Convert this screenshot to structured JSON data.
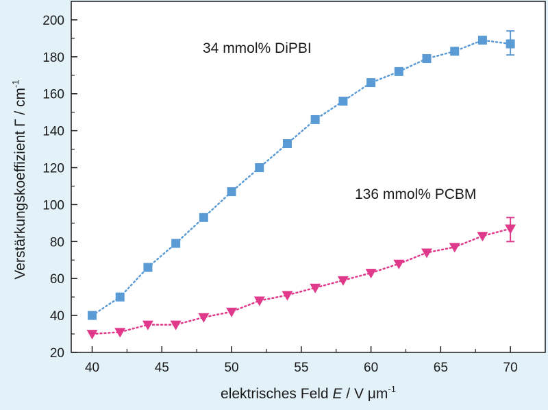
{
  "chart_data": {
    "type": "scatter",
    "title": "",
    "xlabel": {
      "prefix": "elektrisches Feld ",
      "var": "E",
      "unit": " / V μm",
      "sup": "-1"
    },
    "ylabel": {
      "text": "Verstärkungskoeffizient Γ / cm",
      "sup": "-1"
    },
    "xlim": [
      38.5,
      72.5
    ],
    "ylim": [
      20,
      210
    ],
    "xticks": [
      40,
      45,
      50,
      55,
      60,
      65,
      70
    ],
    "yticks": [
      20,
      40,
      60,
      80,
      100,
      120,
      140,
      160,
      180,
      200
    ],
    "grid": false,
    "series": [
      {
        "name": "34 mmol% DiPBI",
        "color": "#5b9bd5",
        "marker": "square",
        "line": "dotted",
        "x": [
          40,
          42,
          44,
          46,
          48,
          50,
          52,
          54,
          56,
          58,
          60,
          62,
          64,
          66,
          68,
          70
        ],
        "y": [
          40,
          50,
          66,
          79,
          93,
          107,
          120,
          133,
          146,
          156,
          166,
          172,
          179,
          183,
          189,
          187
        ],
        "error": [
          {
            "x": 70,
            "low": 181,
            "high": 194
          }
        ]
      },
      {
        "name": "136 mmol% PCBM",
        "color": "#e0388a",
        "marker": "triangle-down",
        "line": "dotted",
        "x": [
          40,
          42,
          44,
          46,
          48,
          50,
          52,
          54,
          56,
          58,
          60,
          62,
          64,
          66,
          68,
          70
        ],
        "y": [
          30,
          31,
          35,
          35,
          39,
          42,
          48,
          51,
          55,
          59,
          63,
          68,
          74,
          77,
          83,
          87
        ],
        "error": [
          {
            "x": 70,
            "low": 80,
            "high": 93
          }
        ]
      }
    ],
    "annotations": [
      {
        "text": "34 mmol% DiPBI",
        "series": 0
      },
      {
        "text": "136 mmol% PCBM",
        "series": 1
      }
    ]
  }
}
